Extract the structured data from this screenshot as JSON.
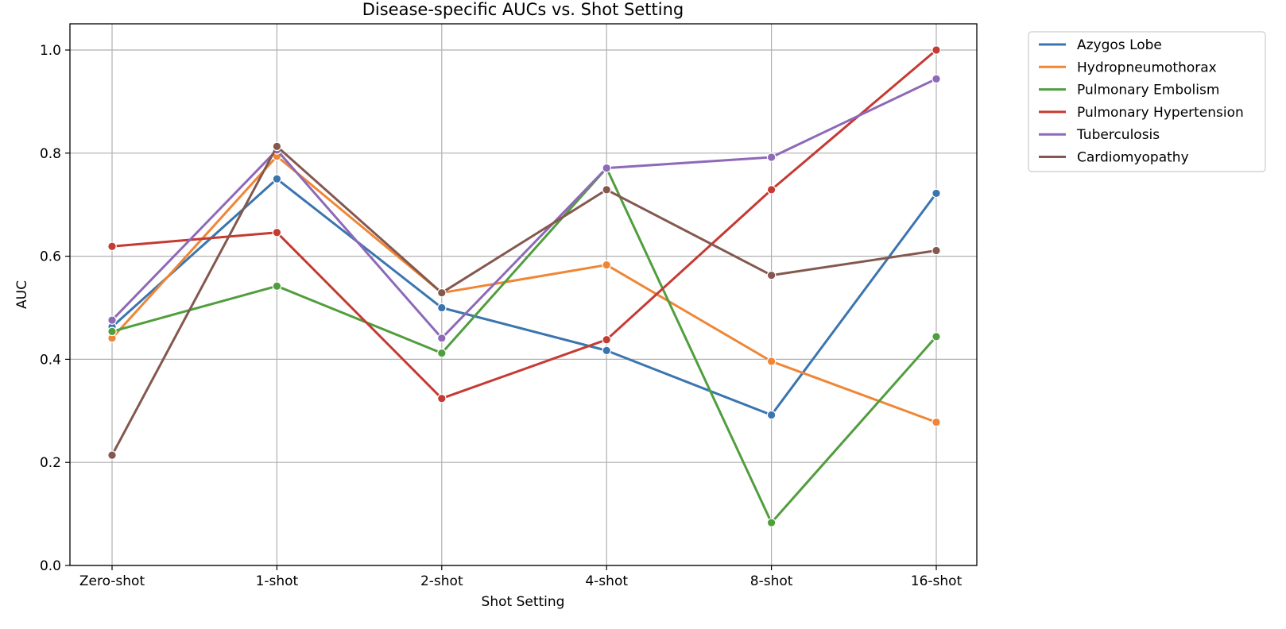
{
  "chart_data": {
    "type": "line",
    "title": "Disease-specific AUCs vs. Shot Setting",
    "xlabel": "Shot Setting",
    "ylabel": "AUC",
    "categories": [
      "Zero-shot",
      "1-shot",
      "2-shot",
      "4-shot",
      "8-shot",
      "16-shot"
    ],
    "ylim": [
      0.0,
      1.05
    ],
    "yticks": [
      0.0,
      0.2,
      0.4,
      0.6,
      0.8,
      1.0
    ],
    "ytick_labels": [
      "0.0",
      "0.2",
      "0.4",
      "0.6",
      "0.8",
      "1.0"
    ],
    "grid": true,
    "legend_position": "outside-top-right",
    "series": [
      {
        "name": "Azygos Lobe",
        "color": "#3b75af",
        "values": [
          0.463,
          0.75,
          0.5,
          0.417,
          0.292,
          0.722
        ]
      },
      {
        "name": "Hydropneumothorax",
        "color": "#ef8636",
        "values": [
          0.441,
          0.794,
          0.529,
          0.583,
          0.396,
          0.278
        ]
      },
      {
        "name": "Pulmonary Embolism",
        "color": "#519e3e",
        "values": [
          0.454,
          0.542,
          0.412,
          0.771,
          0.083,
          0.444
        ]
      },
      {
        "name": "Pulmonary Hypertension",
        "color": "#c53a32",
        "values": [
          0.619,
          0.646,
          0.324,
          0.438,
          0.729,
          1.0
        ]
      },
      {
        "name": "Tuberculosis",
        "color": "#8d69b8",
        "values": [
          0.476,
          0.806,
          0.441,
          0.771,
          0.792,
          0.944
        ]
      },
      {
        "name": "Cardiomyopathy",
        "color": "#84584e",
        "values": [
          0.214,
          0.813,
          0.529,
          0.729,
          0.563,
          0.611
        ]
      }
    ]
  }
}
